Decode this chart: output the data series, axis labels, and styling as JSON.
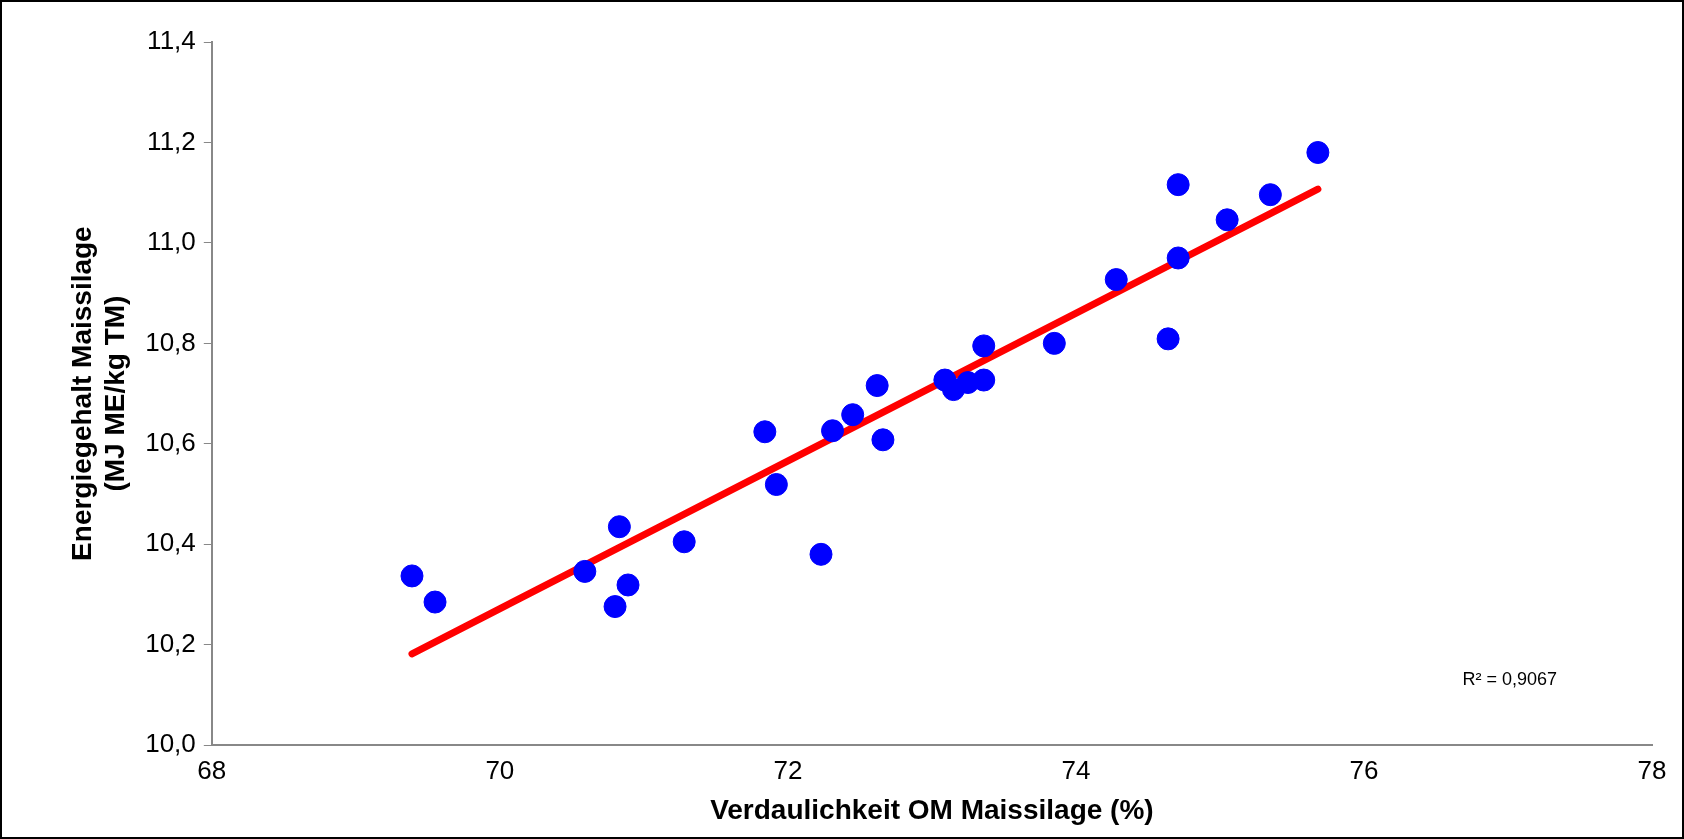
{
  "chart_data": {
    "type": "scatter",
    "xlabel": "Verdaulichkeit OM Maissilage (%)",
    "ylabel": "Energiegehalt Maissilage\n(MJ ME/kg TM)",
    "series": [
      {
        "color": "#0000ff",
        "marker": "circle",
        "x": [
          69.39,
          69.55,
          70.59,
          70.8,
          70.83,
          70.89,
          71.28,
          71.84,
          71.92,
          72.23,
          72.31,
          72.45,
          72.62,
          72.66,
          73.09,
          73.15,
          73.25,
          73.36,
          73.36,
          73.85,
          74.28,
          74.64,
          74.71,
          74.71,
          75.05,
          75.35,
          75.68
        ],
        "values": [
          10.337,
          10.285,
          10.346,
          10.276,
          10.435,
          10.319,
          10.405,
          10.624,
          10.519,
          10.38,
          10.626,
          10.658,
          10.716,
          10.608,
          10.727,
          10.708,
          10.722,
          10.727,
          10.795,
          10.8,
          10.927,
          10.809,
          11.116,
          10.97,
          11.046,
          11.096,
          11.18
        ]
      },
      {
        "type": "line",
        "color": "#ff0000",
        "marker": "none",
        "x": [
          69.39,
          75.68
        ],
        "values": [
          10.182,
          11.107
        ]
      }
    ],
    "xlim": [
      68,
      78
    ],
    "xticks": [
      68,
      70,
      72,
      74,
      76,
      78
    ],
    "ylim": [
      10.0,
      11.4
    ],
    "yticks": [
      {
        "value": 10.0,
        "label": "10,0"
      },
      {
        "value": 10.2,
        "label": "10,2"
      },
      {
        "value": 10.4,
        "label": "10,4"
      },
      {
        "value": 10.6,
        "label": "10,6"
      },
      {
        "value": 10.8,
        "label": "10,8"
      },
      {
        "value": 11.0,
        "label": "11,0"
      },
      {
        "value": 11.2,
        "label": "11,2"
      },
      {
        "value": 11.4,
        "label": "11,4"
      }
    ],
    "grid": false,
    "legend": false,
    "annotations": [
      "R² = 0,9067"
    ]
  }
}
